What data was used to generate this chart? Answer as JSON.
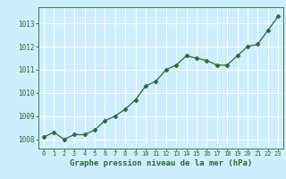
{
  "x": [
    0,
    1,
    2,
    3,
    4,
    5,
    6,
    7,
    8,
    9,
    10,
    11,
    12,
    13,
    14,
    15,
    16,
    17,
    18,
    19,
    20,
    21,
    22,
    23
  ],
  "y": [
    1008.1,
    1008.3,
    1008.0,
    1008.2,
    1008.2,
    1008.4,
    1008.8,
    1009.0,
    1009.3,
    1009.7,
    1010.3,
    1010.5,
    1011.0,
    1011.2,
    1011.6,
    1011.5,
    1011.4,
    1011.2,
    1011.2,
    1011.6,
    1012.0,
    1012.1,
    1012.7,
    1013.3
  ],
  "line_color": "#2d6a2d",
  "marker": "D",
  "marker_size": 2.5,
  "background_color": "#cceeff",
  "grid_color": "#ffffff",
  "xlabel": "Graphe pression niveau de la mer (hPa)",
  "xlabel_color": "#2d6a2d",
  "tick_color": "#2d6a2d",
  "ytick_vals": [
    1008,
    1009,
    1010,
    1011,
    1012,
    1013
  ],
  "ytick_labels": [
    "1008",
    "1009",
    "1010",
    "1011",
    "1012",
    "1013"
  ],
  "ylim": [
    1007.6,
    1013.7
  ],
  "xlim": [
    -0.5,
    23.5
  ],
  "xtick_labels": [
    "0",
    "1",
    "2",
    "3",
    "4",
    "5",
    "6",
    "7",
    "8",
    "9",
    "10",
    "11",
    "12",
    "13",
    "14",
    "15",
    "16",
    "17",
    "18",
    "19",
    "20",
    "21",
    "22",
    "23"
  ]
}
